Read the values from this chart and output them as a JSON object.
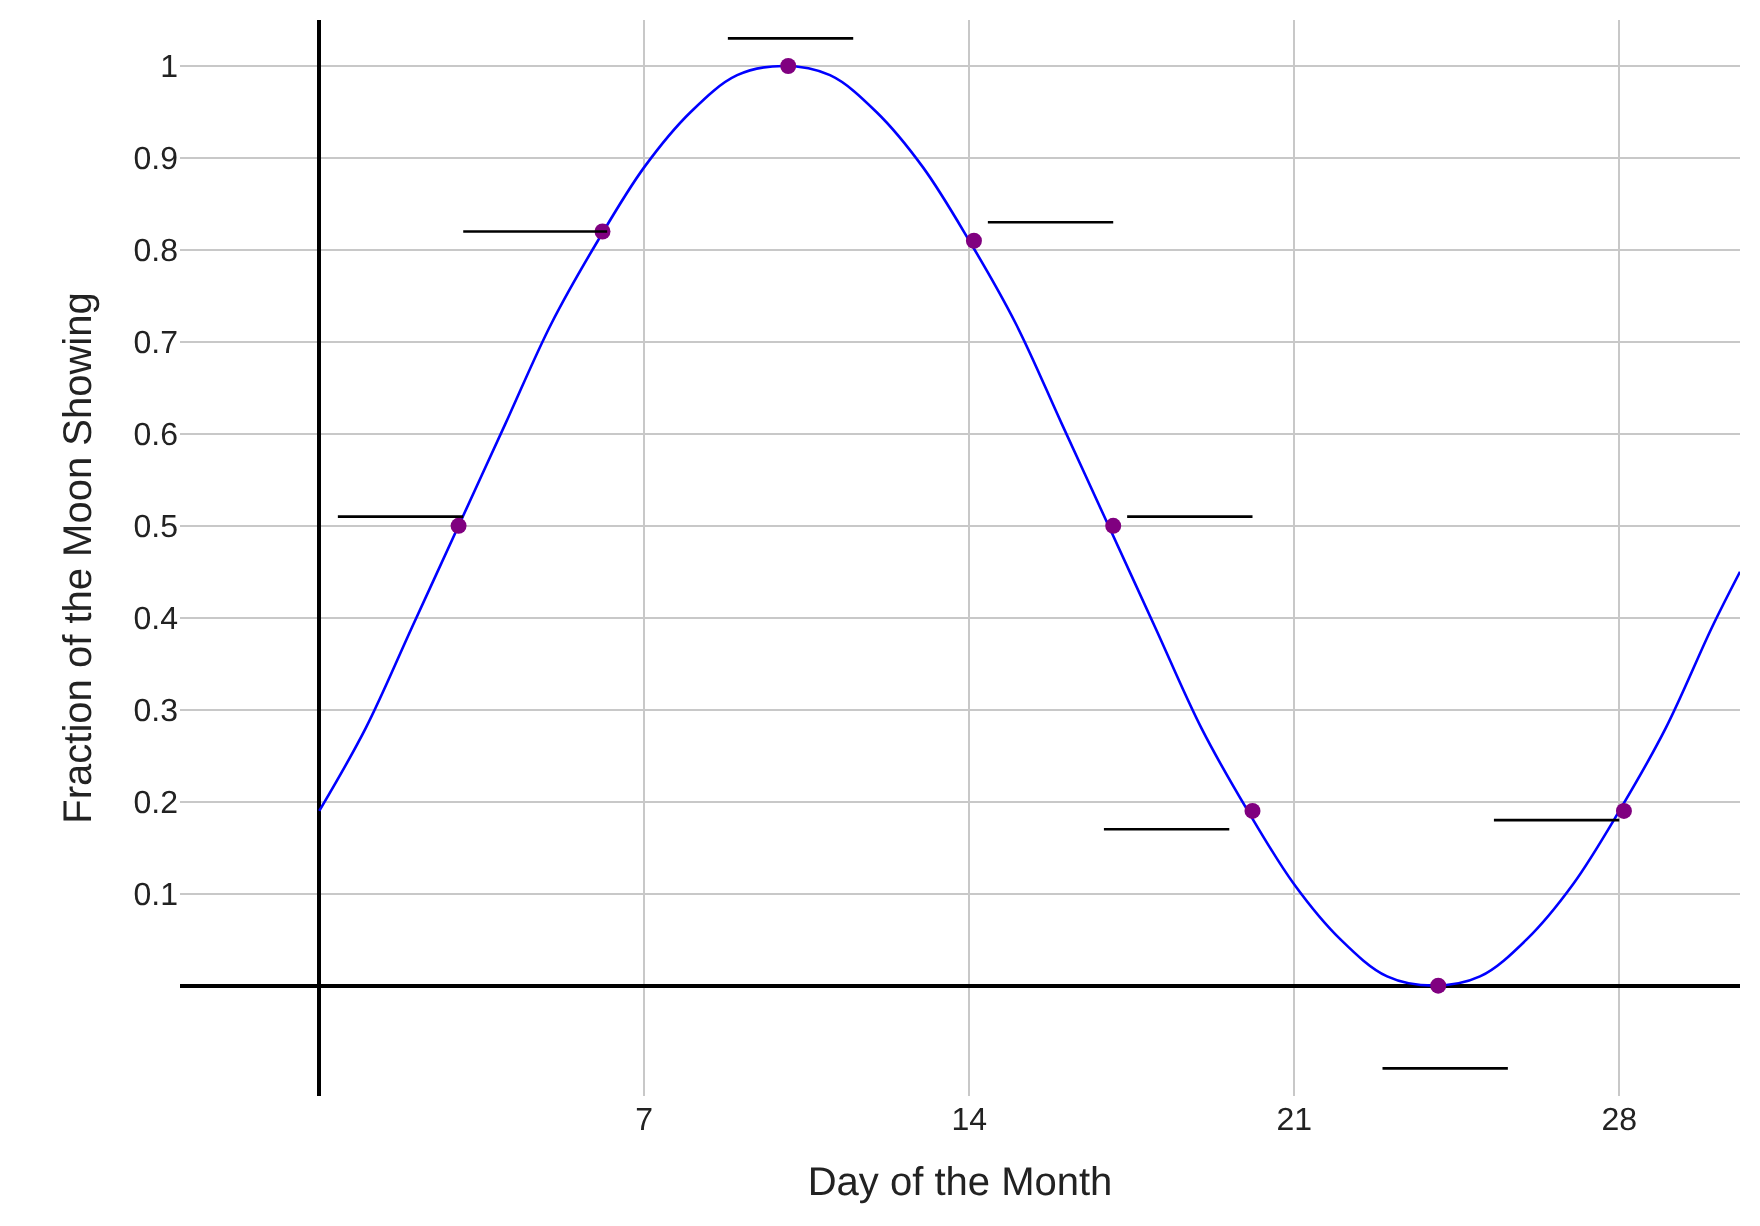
{
  "chart_data": {
    "type": "line",
    "xlabel": "Day of the Month",
    "ylabel": "Fraction of the Moon Showing",
    "xlim": [
      -3,
      30.6
    ],
    "ylim": [
      -0.12,
      1.05
    ],
    "xticks": [
      7,
      14,
      21,
      28
    ],
    "yticks": [
      0.1,
      0.2,
      0.3,
      0.4,
      0.5,
      0.6,
      0.7,
      0.8,
      0.9,
      1
    ],
    "grid": true,
    "series": [
      {
        "color": "#0000ff",
        "marker": "none",
        "line_style": "solid",
        "x": [
          0,
          1,
          2,
          3,
          4,
          5,
          6,
          7,
          8,
          9,
          10,
          11,
          12,
          13,
          14,
          15,
          16,
          17,
          18,
          19,
          20,
          21,
          22,
          23,
          24,
          25,
          26,
          27,
          28,
          29,
          30,
          30.6
        ],
        "values": [
          0.19,
          0.28,
          0.39,
          0.5,
          0.61,
          0.72,
          0.81,
          0.89,
          0.95,
          0.99,
          1,
          0.99,
          0.95,
          0.89,
          0.81,
          0.72,
          0.61,
          0.5,
          0.39,
          0.28,
          0.19,
          0.11,
          0.05,
          0.01,
          0,
          0.01,
          0.05,
          0.11,
          0.19,
          0.28,
          0.39,
          0.45
        ]
      },
      {
        "type": "scatter",
        "color": "#800080",
        "marker": "circle",
        "x": [
          3,
          6.1,
          10.1,
          14.1,
          17.1,
          20.1,
          24.1,
          28.1
        ],
        "values": [
          0.5,
          0.82,
          1,
          0.81,
          0.5,
          0.19,
          0,
          0.19
        ]
      },
      {
        "color": "#000000",
        "marker": "none",
        "line_style": "solid",
        "x": [
          0.4,
          3.1,
          null,
          3.1,
          6.2,
          null,
          8.8,
          11.5,
          null,
          14.4,
          17.1,
          null,
          17.4,
          20.1,
          null,
          16.9,
          19.6,
          null,
          22.9,
          25.6,
          null,
          25.3,
          28.0
        ],
        "values": [
          0.51,
          0.51,
          null,
          0.82,
          0.82,
          null,
          1.03,
          1.03,
          null,
          0.83,
          0.83,
          null,
          0.51,
          0.51,
          null,
          0.17,
          0.17,
          null,
          -0.09,
          -0.09,
          null,
          0.18,
          0.18
        ]
      }
    ]
  }
}
